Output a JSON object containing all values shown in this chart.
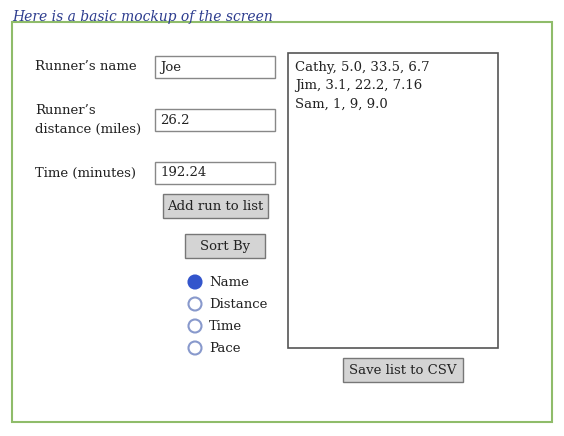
{
  "title": "Here is a basic mockup of the screen",
  "title_fontsize": 10,
  "title_color": "#2e3d8f",
  "bg_color": "#ffffff",
  "outer_border_color": "#8fbc6a",
  "outer_border_lw": 1.5,
  "label_name": "Runner’s name",
  "label_distance": "Runner’s\ndistance (miles)",
  "label_time": "Time (minutes)",
  "input_name_val": "Joe",
  "input_distance_val": "26.2",
  "input_time_val": "192.24",
  "btn_add": "Add run to list",
  "btn_sort": "Sort By",
  "btn_save": "Save list to CSV",
  "radio_options": [
    "Name",
    "Distance",
    "Time",
    "Pace"
  ],
  "radio_selected": 0,
  "list_items": [
    "Cathy, 5.0, 33.5, 6.7",
    "Jim, 3.1, 22.2, 7.16",
    "Sam, 1, 9, 9.0"
  ],
  "input_box_color": "#ffffff",
  "input_border_color": "#888888",
  "btn_bg_color": "#d4d4d4",
  "btn_border_color": "#777777",
  "list_border_color": "#555555",
  "radio_fill_selected": "#3355cc",
  "radio_fill_empty": "#ffffff",
  "radio_border_selected": "#3355cc",
  "radio_border_empty": "#8899cc",
  "text_color": "#222222",
  "font_size": 9.5
}
